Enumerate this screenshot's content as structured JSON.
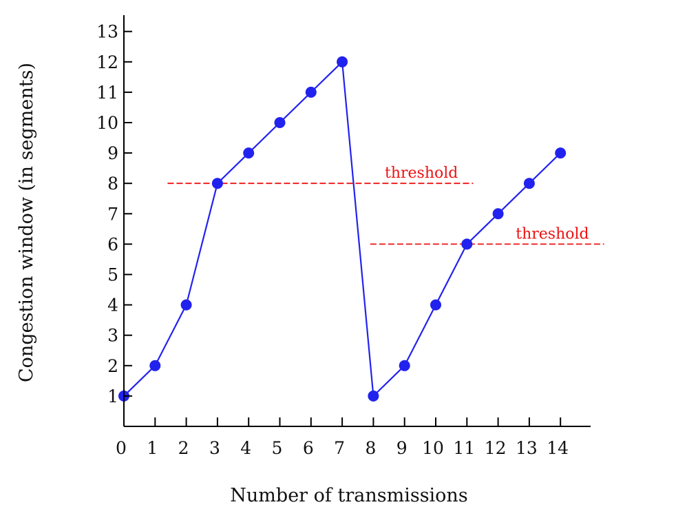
{
  "chart_data": {
    "type": "line",
    "xlabel": "Number of transmissions",
    "ylabel": "Congestion window  (in segments)",
    "xlim": [
      0,
      15
    ],
    "ylim": [
      0,
      13
    ],
    "xticks": [
      0,
      1,
      2,
      3,
      4,
      5,
      6,
      7,
      8,
      9,
      10,
      11,
      12,
      13,
      14
    ],
    "yticks": [
      1,
      2,
      3,
      4,
      5,
      6,
      7,
      8,
      9,
      10,
      11,
      12,
      13
    ],
    "grid": false,
    "series": [
      {
        "x": [
          0,
          1,
          2,
          3,
          4,
          5,
          6,
          7,
          8,
          9,
          10,
          11,
          12,
          13,
          14
        ],
        "y": [
          1,
          2,
          4,
          8,
          9,
          10,
          11,
          12,
          1,
          2,
          4,
          6,
          7,
          8,
          9
        ],
        "color": "#2222ee",
        "marker": "circle"
      }
    ],
    "thresholds": [
      {
        "label": "threshold",
        "y": 8,
        "x_start": 1.4,
        "x_end": 11.2,
        "color": "#ee1111"
      },
      {
        "label": "threshold",
        "y": 6,
        "x_start": 7.9,
        "x_end": 15.4,
        "color": "#ee1111"
      }
    ]
  }
}
